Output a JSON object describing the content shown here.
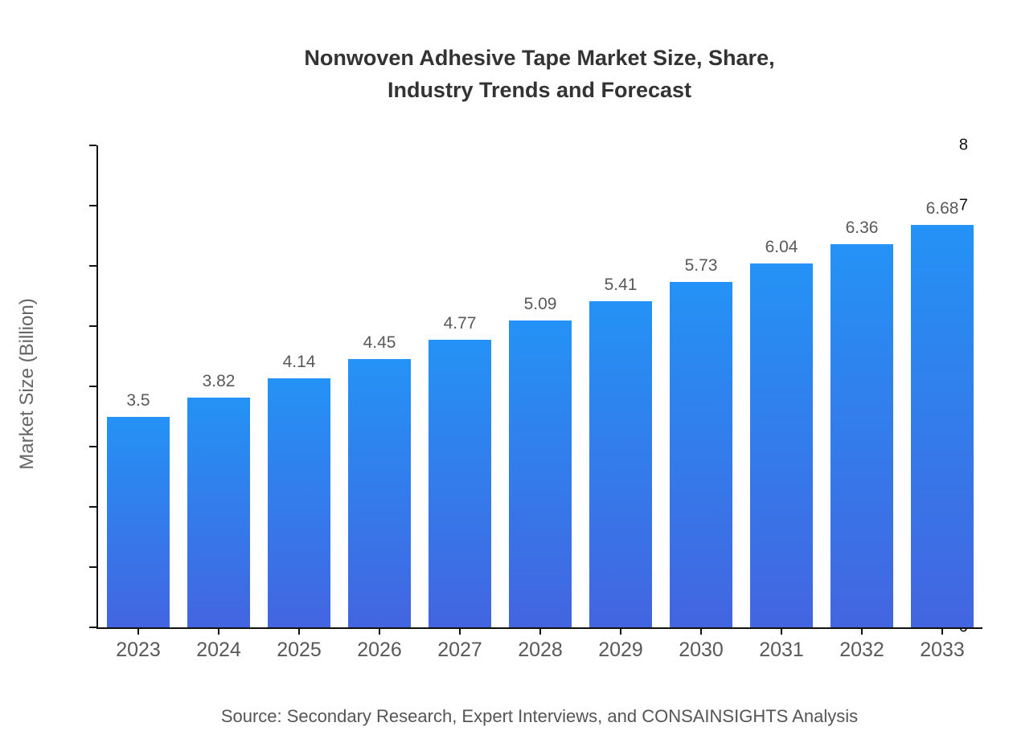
{
  "chart_data": {
    "type": "bar",
    "title": "Nonwoven Adhesive Tape Market Size, Share, Industry Trends and Forecast",
    "title_lines": [
      "Nonwoven Adhesive Tape Market Size, Share,",
      "Industry Trends and Forecast"
    ],
    "categories": [
      "2023",
      "2024",
      "2025",
      "2026",
      "2027",
      "2028",
      "2029",
      "2030",
      "2031",
      "2032",
      "2033"
    ],
    "values": [
      3.5,
      3.82,
      4.14,
      4.45,
      4.77,
      5.09,
      5.41,
      5.73,
      6.04,
      6.36,
      6.68
    ],
    "value_labels": [
      "3.5",
      "3.82",
      "4.14",
      "4.45",
      "4.77",
      "5.09",
      "5.41",
      "5.73",
      "6.04",
      "6.36",
      "6.68"
    ],
    "xlabel": "",
    "ylabel": "Market Size (Billion)",
    "ylim": [
      0,
      8
    ],
    "yticks": [
      0,
      1,
      2,
      3,
      4,
      5,
      6,
      7,
      8
    ],
    "grid": false,
    "legend": "none",
    "source_note": "Source: Secondary Research, Expert Interviews, and CONSAINSIGHTS Analysis"
  },
  "colors": {
    "bar_gradient_top": "#2492f6",
    "bar_gradient_bottom": "#4365e0",
    "axis": "#111111",
    "title_text": "#333333",
    "axis_label_text": "#666666",
    "tick_label_text": "#595959",
    "source_text": "#555555",
    "background": "#ffffff"
  }
}
